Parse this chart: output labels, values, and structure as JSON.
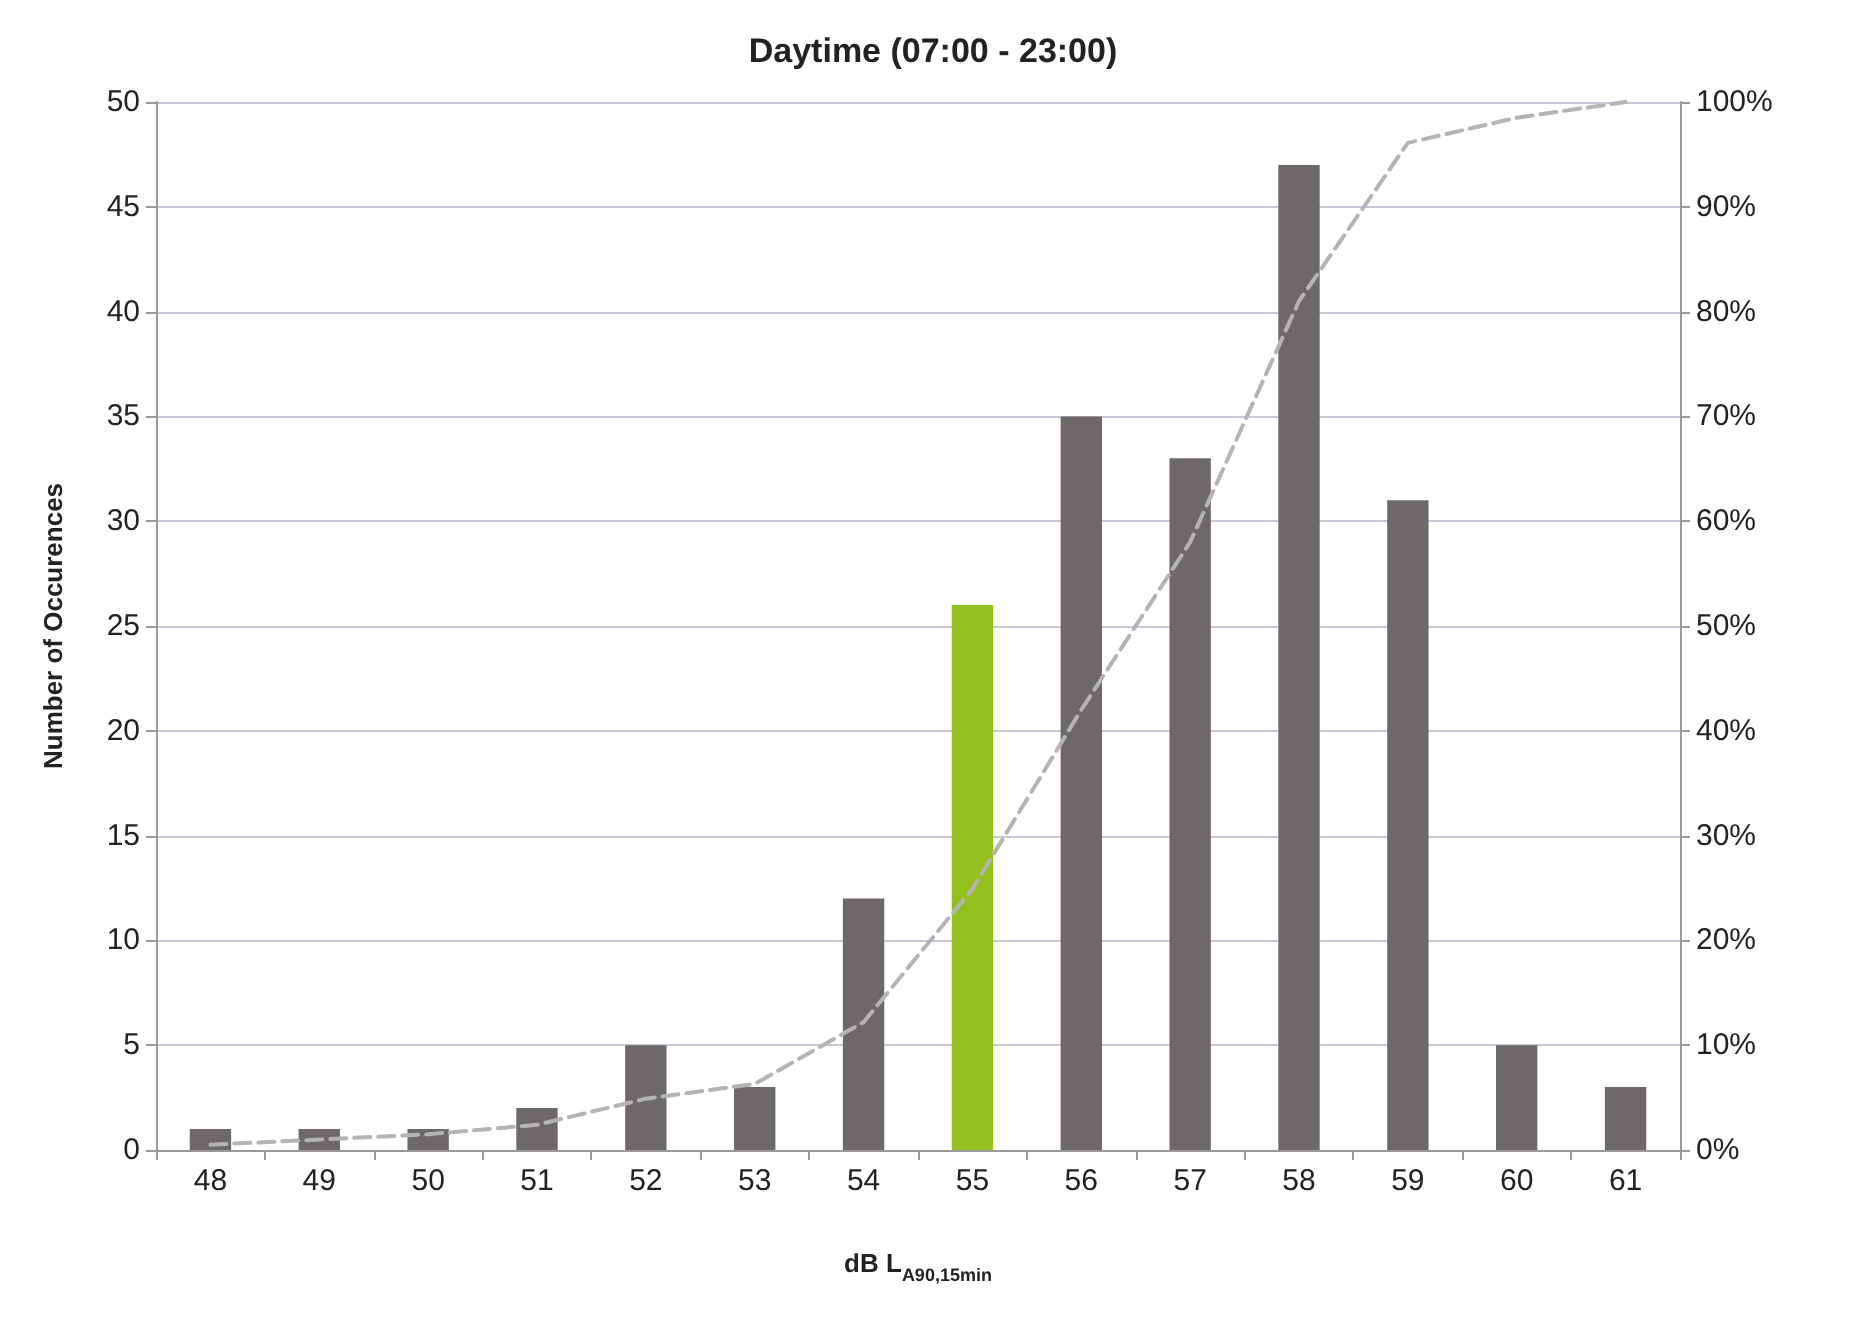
{
  "chart_data": {
    "type": "bar",
    "title": "Daytime (07:00 - 23:00)",
    "xlabel": "dB L$_{A90,15min}$",
    "ylabel": "Number of Occurences",
    "categories": [
      "48",
      "49",
      "50",
      "51",
      "52",
      "53",
      "54",
      "55",
      "56",
      "57",
      "58",
      "59",
      "60",
      "61"
    ],
    "series": [
      {
        "colors": [
          "#6d6968",
          "#6d6968",
          "#6d6968",
          "#6d6968",
          "#6d6968",
          "#6d6968",
          "#6d6968",
          "#92c01f",
          "#6d6968",
          "#6d6968",
          "#6d6968",
          "#6d6968",
          "#6d6968",
          "#6d6968"
        ],
        "values": [
          1,
          1,
          1,
          2,
          5,
          3,
          12,
          26,
          35,
          33,
          47,
          31,
          5,
          3
        ]
      },
      {
        "type": "line",
        "axis": "y2",
        "color": "#b4b4b4",
        "line_style": "dashed",
        "marker": "none",
        "values": [
          0.5,
          1,
          1.5,
          2.4,
          4.9,
          6.3,
          12.2,
          24.9,
          42,
          58,
          81,
          96.1,
          98.5,
          100
        ]
      }
    ],
    "ylim": [
      0,
      50
    ],
    "yticks": [
      0,
      5,
      10,
      15,
      20,
      25,
      30,
      35,
      40,
      45,
      50
    ],
    "y2lim": [
      0,
      100
    ],
    "y2ticks": [
      {
        "value": 0,
        "label": "0%"
      },
      {
        "value": 10,
        "label": "10%"
      },
      {
        "value": 20,
        "label": "20%"
      },
      {
        "value": 30,
        "label": "30%"
      },
      {
        "value": 40,
        "label": "40%"
      },
      {
        "value": 50,
        "label": "50%"
      },
      {
        "value": 60,
        "label": "60%"
      },
      {
        "value": 70,
        "label": "70%"
      },
      {
        "value": 80,
        "label": "80%"
      },
      {
        "value": 90,
        "label": "90%"
      },
      {
        "value": 100,
        "label": "100%"
      }
    ],
    "grid": "y"
  }
}
